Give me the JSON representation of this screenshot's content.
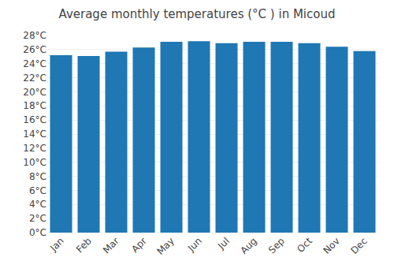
{
  "chart_data": {
    "type": "bar",
    "title": "Average monthly temperatures (°C ) in Micoud",
    "categories": [
      "Jan",
      "Feb",
      "Mar",
      "Apr",
      "May",
      "Jun",
      "Jul",
      "Aug",
      "Sep",
      "Oct",
      "Nov",
      "Dec"
    ],
    "values": [
      25.2,
      25.1,
      25.7,
      26.3,
      27.1,
      27.2,
      26.9,
      27.1,
      27.1,
      26.9,
      26.4,
      25.8
    ],
    "ylim": [
      0,
      28
    ],
    "yticks": [
      {
        "value": 0,
        "label": "0°C"
      },
      {
        "value": 2,
        "label": "2°C"
      },
      {
        "value": 4,
        "label": "4°C"
      },
      {
        "value": 6,
        "label": "6°C"
      },
      {
        "value": 8,
        "label": "8°C"
      },
      {
        "value": 10,
        "label": "10°C"
      },
      {
        "value": 12,
        "label": "12°C"
      },
      {
        "value": 14,
        "label": "14°C"
      },
      {
        "value": 16,
        "label": "16°C"
      },
      {
        "value": 18,
        "label": "18°C"
      },
      {
        "value": 20,
        "label": "20°C"
      },
      {
        "value": 22,
        "label": "22°C"
      },
      {
        "value": 24,
        "label": "24°C"
      },
      {
        "value": 26,
        "label": "26°C"
      },
      {
        "value": 28,
        "label": "28°C"
      }
    ],
    "grid": true
  }
}
